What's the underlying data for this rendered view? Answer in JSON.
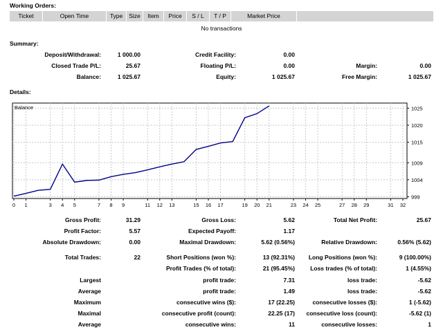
{
  "working_orders": {
    "title": "Working Orders:",
    "columns": [
      "Ticket",
      "Open Time",
      "Type",
      "Size",
      "Item",
      "Price",
      "S / L",
      "T / P",
      "Market Price"
    ],
    "empty_text": "No transactions"
  },
  "summary": {
    "title": "Summary:",
    "deposit_withdrawal": {
      "label": "Deposit/Withdrawal:",
      "value": "1 000.00"
    },
    "closed_trade_pl": {
      "label": "Closed Trade P/L:",
      "value": "25.67"
    },
    "balance": {
      "label": "Balance:",
      "value": "1 025.67"
    },
    "credit_facility": {
      "label": "Credit Facility:",
      "value": "0.00"
    },
    "floating_pl": {
      "label": "Floating P/L:",
      "value": "0.00"
    },
    "equity": {
      "label": "Equity:",
      "value": "1 025.67"
    },
    "margin": {
      "label": "Margin:",
      "value": "0.00"
    },
    "free_margin": {
      "label": "Free Margin:",
      "value": "1 025.67"
    }
  },
  "details": {
    "title": "Details:"
  },
  "chart_data": {
    "type": "line",
    "title": "Balance",
    "x_ticks": [
      "0",
      "1",
      "3",
      "4",
      "5",
      "7",
      "8",
      "9",
      "11",
      "12",
      "13",
      "15",
      "16",
      "17",
      "19",
      "20",
      "21",
      "23",
      "24",
      "25",
      "27",
      "28",
      "29",
      "31",
      "32"
    ],
    "x_tick_values": [
      0,
      1,
      3,
      4,
      5,
      7,
      8,
      9,
      11,
      12,
      13,
      15,
      16,
      17,
      19,
      20,
      21,
      23,
      24,
      25,
      27,
      28,
      29,
      31,
      32
    ],
    "y_ticks": [
      "1025",
      "1020",
      "1015",
      "1009",
      "1004",
      "999"
    ],
    "y_tick_values": [
      1025,
      1020,
      1015,
      1009,
      1004,
      999
    ],
    "xlim": [
      0,
      32
    ],
    "ylim": [
      998.5,
      1026.5
    ],
    "grid": true,
    "series": [
      {
        "color": "#00008b",
        "x": [
          0,
          1,
          2,
          3,
          4,
          5,
          6,
          7,
          8,
          9,
          10,
          11,
          12,
          13,
          14,
          15,
          16,
          17,
          18,
          19,
          20,
          21
        ],
        "y": [
          999.2,
          1000.0,
          1000.9,
          1001.2,
          1008.6,
          1003.3,
          1003.8,
          1003.9,
          1004.9,
          1005.6,
          1006.1,
          1006.9,
          1007.8,
          1008.6,
          1009.3,
          1012.9,
          1013.8,
          1014.8,
          1015.2,
          1022.2,
          1023.4,
          1025.67
        ]
      }
    ]
  },
  "stats": {
    "gross_profit": {
      "label": "Gross Profit:",
      "value": "31.29"
    },
    "gross_loss": {
      "label": "Gross Loss:",
      "value": "5.62"
    },
    "total_net_profit": {
      "label": "Total Net Profit:",
      "value": "25.67"
    },
    "profit_factor": {
      "label": "Profit Factor:",
      "value": "5.57"
    },
    "expected_payoff": {
      "label": "Expected Payoff:",
      "value": "1.17"
    },
    "absolute_drawdown": {
      "label": "Absolute Drawdown:",
      "value": "0.00"
    },
    "maximal_drawdown": {
      "label": "Maximal Drawdown:",
      "value": "5.62 (0.56%)"
    },
    "relative_drawdown": {
      "label": "Relative Drawdown:",
      "value": "0.56% (5.62)"
    },
    "total_trades": {
      "label": "Total Trades:",
      "value": "22"
    },
    "short_positions": {
      "label": "Short Positions (won %):",
      "value": "13 (92.31%)"
    },
    "long_positions": {
      "label": "Long Positions (won %):",
      "value": "9 (100.00%)"
    },
    "profit_trades": {
      "label": "Profit Trades (% of total):",
      "value": "21 (95.45%)"
    },
    "loss_trades": {
      "label": "Loss trades (% of total):",
      "value": "1 (4.55%)"
    },
    "largest": {
      "label": "Largest",
      "profit_label": "profit trade:",
      "profit_value": "7.31",
      "loss_label": "loss trade:",
      "loss_value": "-5.62"
    },
    "average": {
      "label": "Average",
      "profit_label": "profit trade:",
      "profit_value": "1.49",
      "loss_label": "loss trade:",
      "loss_value": "-5.62"
    },
    "maximum": {
      "label": "Maximum",
      "profit_label": "consecutive wins ($):",
      "profit_value": "17 (22.25)",
      "loss_label": "consecutive losses ($):",
      "loss_value": "1 (-5.62)"
    },
    "maximal": {
      "label": "Maximal",
      "profit_label": "consecutive profit (count):",
      "profit_value": "22.25 (17)",
      "loss_label": "consecutive loss (count):",
      "loss_value": "-5.62 (1)"
    },
    "average2": {
      "label": "Average",
      "profit_label": "consecutive wins:",
      "profit_value": "11",
      "loss_label": "consecutive losses:",
      "loss_value": "1"
    }
  }
}
